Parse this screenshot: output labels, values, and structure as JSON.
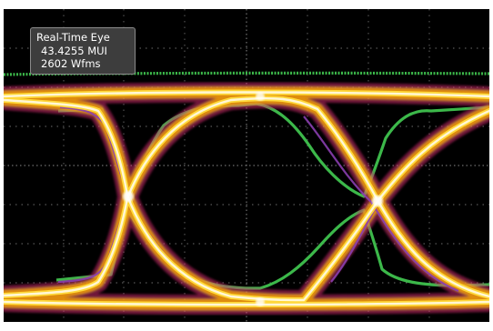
{
  "readout": {
    "title": "Real-Time Eye",
    "unit_intervals": "43.4255 MUI",
    "waveforms": "2602 Wfms"
  },
  "display": {
    "background_color": "#000000",
    "graticule_color": "#6b6b6b",
    "mask_color": "#3cb84a",
    "trace_colors": [
      "#fff7d6",
      "#ffd83a",
      "#f2a100",
      "#e4532a",
      "#cc2a6a",
      "#8a3fb0"
    ]
  }
}
